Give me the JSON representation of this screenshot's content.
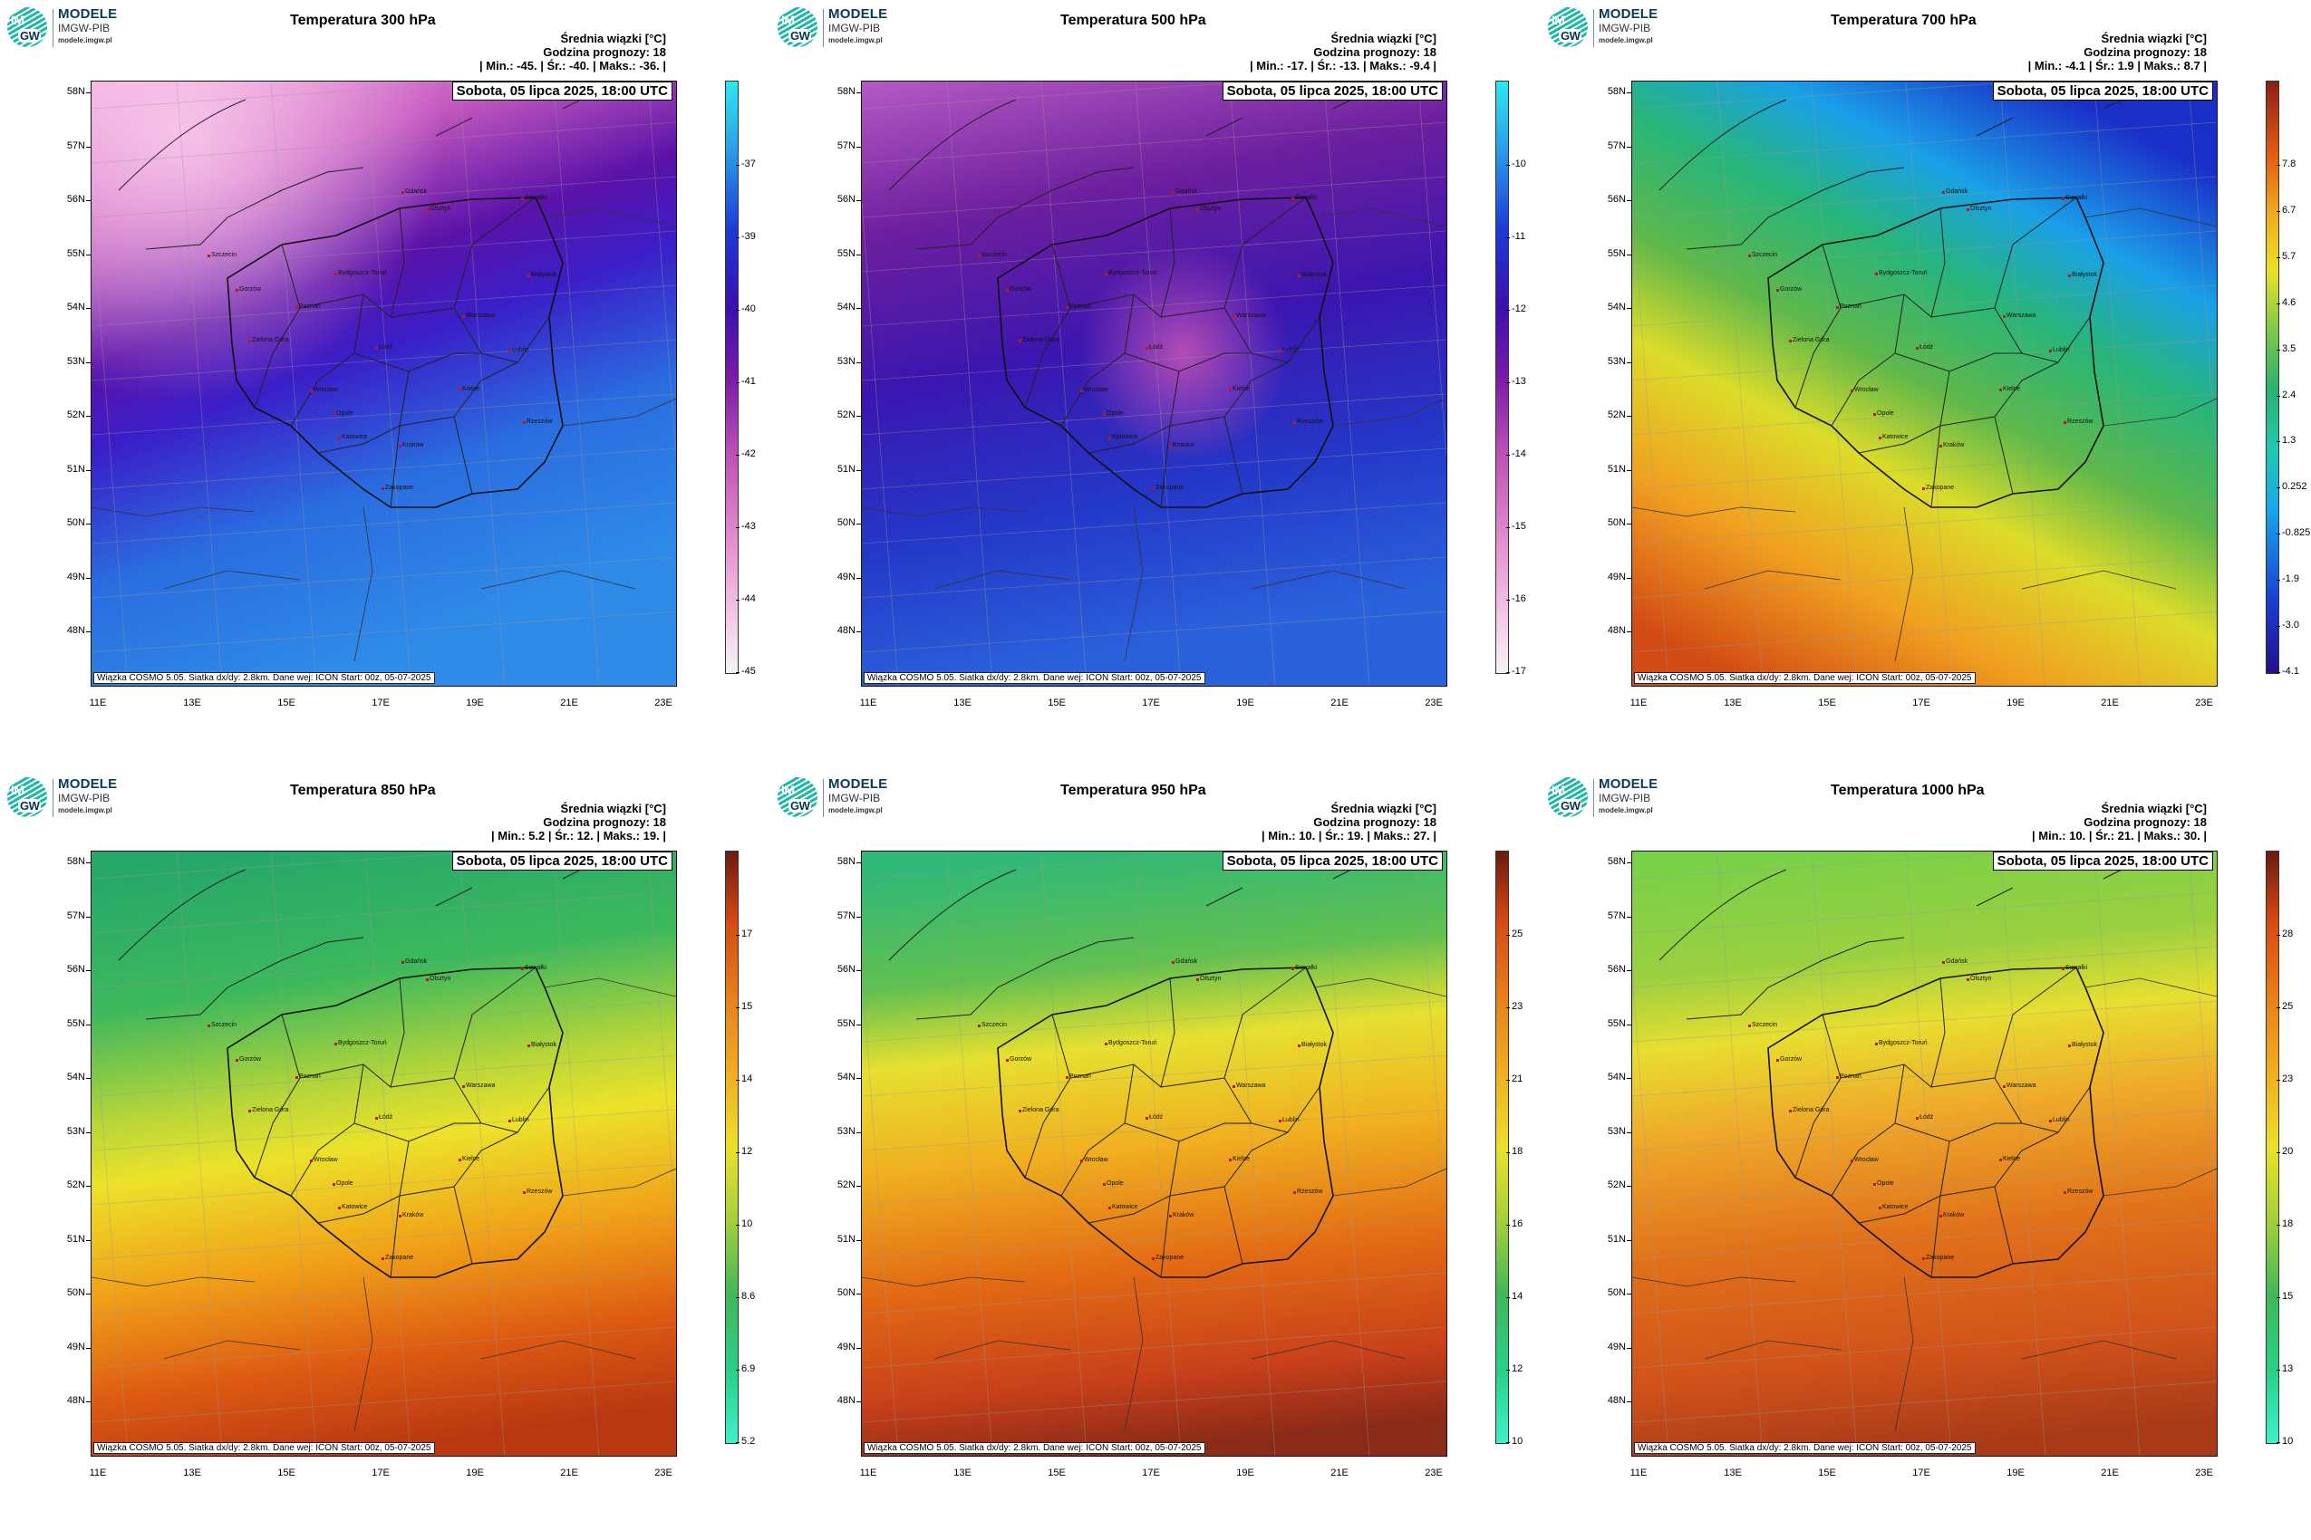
{
  "logo": {
    "line1": "MODELE",
    "line2": "IMGW-PIB",
    "line3": "modele.imgw.pl",
    "badge_top": "IM",
    "badge_bottom": "GW"
  },
  "common": {
    "header_line1": "Średnia wiązki [°C]",
    "header_line2": "Godzina prognozy: 18",
    "date": "Sobota, 05 lipca 2025, 18:00 UTC",
    "footer": "Wiązka COSMO 5.05. Siatka dx/dy: 2.8km. Dane wej: ICON Start: 00z, 05-07-2025",
    "lat_labels": [
      "58N",
      "57N",
      "56N",
      "55N",
      "54N",
      "53N",
      "52N",
      "51N",
      "50N",
      "49N",
      "48N"
    ],
    "lon_labels": [
      "11E",
      "13E",
      "15E",
      "17E",
      "19E",
      "21E",
      "23E"
    ],
    "cities": [
      "Gdańsk",
      "Olsztyn",
      "Suwałki",
      "Szczecin",
      "Białystok",
      "Bydgoszcz-Toruń",
      "Gorzów",
      "Poznań",
      "Warszawa",
      "Zielona Góra",
      "Łódź",
      "Lublin",
      "Wrocław",
      "Kielce",
      "Opole",
      "Rzeszów",
      "Katowice",
      "Kraków",
      "Zakopane"
    ]
  },
  "panels": [
    {
      "title": "Temperatura 300 hPa",
      "stats": "| Min.:    -45. | Śr.:    -40. | Maks.:    -36. |",
      "scheme": "cold",
      "colorbar": [
        "-37",
        "-39",
        "-40",
        "-41",
        "-42",
        "-43",
        "-44",
        "-45"
      ]
    },
    {
      "title": "Temperatura 500 hPa",
      "stats": "| Min.:    -17. | Śr.:    -13. | Maks.:    -9.4 |",
      "scheme": "cold",
      "colorbar": [
        "-10",
        "-11",
        "-12",
        "-13",
        "-14",
        "-15",
        "-16",
        "-17"
      ]
    },
    {
      "title": "Temperatura 700 hPa",
      "stats": "| Min.:    -4.1 | Śr.:    1.9 | Maks.:    8.7 |",
      "scheme": "mid",
      "colorbar": [
        "7.8",
        "6.7",
        "5.7",
        "4.6",
        "3.5",
        "2.4",
        "1.3",
        "0.252",
        "-0.825",
        "-1.9",
        "-3.0",
        "-4.1"
      ]
    },
    {
      "title": "Temperatura 850 hPa",
      "stats": "| Min.:    5.2 | Śr.:    12. | Maks.:    19. |",
      "scheme": "warm",
      "colorbar": [
        "17",
        "15",
        "14",
        "12",
        "10",
        "8.6",
        "6.9",
        "5.2"
      ]
    },
    {
      "title": "Temperatura 950 hPa",
      "stats": "| Min.:    10. | Śr.:    19. | Maks.:    27. |",
      "scheme": "warm",
      "colorbar": [
        "25",
        "23",
        "21",
        "18",
        "16",
        "14",
        "12",
        "10"
      ]
    },
    {
      "title": "Temperatura 1000 hPa",
      "stats": "| Min.:    10. | Śr.:    21. | Maks.:    30. |",
      "scheme": "warm",
      "colorbar": [
        "28",
        "25",
        "23",
        "20",
        "18",
        "15",
        "13",
        "10"
      ]
    }
  ]
}
